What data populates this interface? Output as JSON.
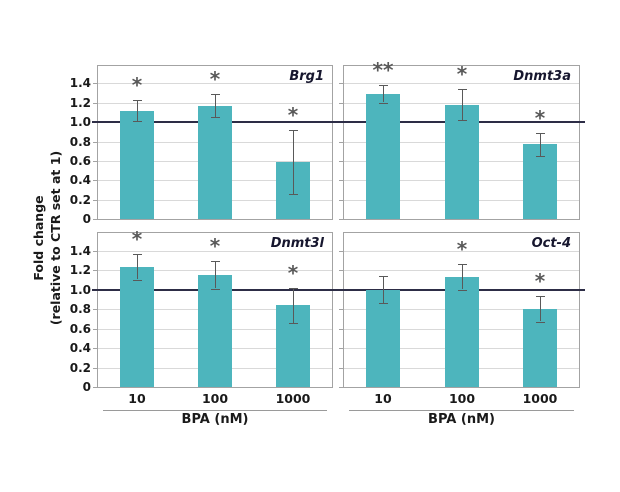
{
  "chart_data": {
    "type": "bar",
    "categories": [
      "10",
      "100",
      "1000"
    ],
    "xlabel": "BPA (nM)",
    "ylabel_line1": "Fold change",
    "ylabel_line2": "(relative to CTR set at 1)",
    "yticks": [
      0,
      0.2,
      0.4,
      0.6,
      0.8,
      1.0,
      1.2,
      1.4
    ],
    "ytick_labels": [
      "0",
      "0.2",
      "0.4",
      "0.6",
      "0.8",
      "1.0",
      "1.2",
      "1.4"
    ],
    "ylim": [
      0,
      1.58
    ],
    "reference_line": 1.0,
    "grid": true,
    "legend": "none",
    "panels": [
      {
        "gene": "Brg1",
        "values": [
          1.12,
          1.17,
          0.59
        ],
        "errors": [
          0.11,
          0.12,
          0.33
        ],
        "significance": [
          "*",
          "*",
          "*"
        ]
      },
      {
        "gene": "Dnmt3a",
        "values": [
          1.29,
          1.18,
          0.77
        ],
        "errors": [
          0.09,
          0.16,
          0.12
        ],
        "significance": [
          "**",
          "*",
          "*"
        ]
      },
      {
        "gene": "Dnmt3l",
        "values": [
          1.23,
          1.15,
          0.84
        ],
        "errors": [
          0.13,
          0.14,
          0.18
        ],
        "significance": [
          "*",
          "*",
          "*"
        ]
      },
      {
        "gene": "Oct-4",
        "values": [
          1.0,
          1.13,
          0.8
        ],
        "errors": [
          0.14,
          0.13,
          0.13
        ],
        "significance": [
          "",
          "*",
          "*"
        ]
      }
    ],
    "colors": {
      "bar_fill": "#4db5bd",
      "gridline": "#d9d9d9",
      "panel_border": "#a3a3a3",
      "reference_line": "#2d2d46",
      "error_bar": "#595959",
      "significance": "#595959",
      "text": "#1a1a1a",
      "background": "#ffffff"
    }
  }
}
